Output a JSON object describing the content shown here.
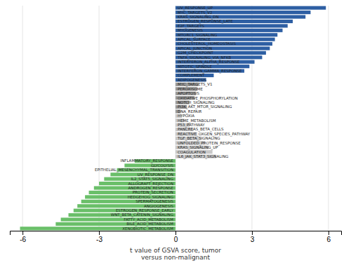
{
  "chart_data": {
    "type": "bar",
    "orientation": "horizontal",
    "categories": [
      "UV_RESPONSE_UP",
      "MYC_TARGETS_V2",
      "KRAS_SIGNALING_DN",
      "ESTROGEN_RESPONSE_LATE",
      "E2F_TARGETS",
      "MYOGENESIS",
      "MTORC1_SIGNALING",
      "APICAL_SURFACE",
      "CHOLESTEROL_HOMEOSTASIS",
      "APICAL_JUNCTION",
      "G2M_CHECKPOINT",
      "TNFA_SIGNALING_VIA_NFKB",
      "INTERFERON_ALPHA_RESPONSE",
      "MITOTIC_SPINDLE",
      "INTERFERON_GAMMA_RESPONSE",
      "COMPLEMENT",
      "ADIPOGENESIS",
      "MYC_TARGETS_V1",
      "PEROXISOME",
      "APOPTOSIS",
      "OXIDATIVE_PHOSPHORYLATION",
      "NOTCH_SIGNALING",
      "PI3K_AKT_MTOR_SIGNALING",
      "DNA_REPAIR",
      "HYPOXIA",
      "HEME_METABOLISM",
      "P53_PATHWAY",
      "PANCREAS_BETA_CELLS",
      "REACTIVE_OXGEN_SPECIES_PATHWAY",
      "TGF_BETA_SIGNALING",
      "UNFOLDED_PROTEIN_RESPONSE",
      "KRAS_SIGNALING_UP",
      "COAGULATION",
      "IL6_JAK_STAT3_SIGNALING",
      "INFLAMMATORY_RESPONSE",
      "GLYCOLYSIS",
      "EPITHELIAL_MESENCHYMAL_TRANSITION",
      "UV_RESPONSE_DN",
      "IL2_STAT5_SIGNALING",
      "ALLOGRAFT_REJECTION",
      "ANDROGEN_RESPONSE",
      "PROTEIN_SECRETION",
      "HEDGEHOG_SIGNALING",
      "SPERMATOGENESIS",
      "ANGIOGENESIS",
      "ESTROGEN_RESPONSE_EARLY",
      "WNT_BETA_CATENIN_SIGNALING",
      "FATTY_ACID_METABOLISM",
      "BILE_ACID_METABOLISM",
      "XENOBIOTIC_METABOLISM"
    ],
    "values": [
      5.9,
      5.3,
      5.1,
      4.6,
      4.4,
      4.2,
      4.0,
      3.9,
      3.8,
      3.7,
      3.55,
      3.4,
      3.1,
      2.9,
      2.7,
      1.5,
      1.2,
      0.9,
      0.85,
      0.8,
      0.75,
      0.55,
      0.45,
      0.2,
      0.25,
      0.35,
      0.55,
      0.7,
      0.85,
      1.0,
      1.15,
      1.3,
      1.45,
      1.6,
      -1.6,
      -2.0,
      -2.3,
      -2.55,
      -2.8,
      -3.0,
      -3.2,
      -3.4,
      -3.55,
      -3.7,
      -3.85,
      -4.0,
      -4.2,
      -4.5,
      -4.7,
      -6.1
    ],
    "colors": [
      "#2E5FA3",
      "#2E5FA3",
      "#2E5FA3",
      "#2E5FA3",
      "#2E5FA3",
      "#2E5FA3",
      "#2E5FA3",
      "#2E5FA3",
      "#2E5FA3",
      "#2E5FA3",
      "#2E5FA3",
      "#2E5FA3",
      "#2E5FA3",
      "#2E5FA3",
      "#2E5FA3",
      "#2E5FA3",
      "#2E5FA3",
      "#999999",
      "#999999",
      "#999999",
      "#999999",
      "#999999",
      "#999999",
      "#999999",
      "#C8C8C8",
      "#C8C8C8",
      "#C8C8C8",
      "#C8C8C8",
      "#C8C8C8",
      "#C8C8C8",
      "#C8C8C8",
      "#C8C8C8",
      "#C8C8C8",
      "#C8C8C8",
      "#6ABF69",
      "#6ABF69",
      "#6ABF69",
      "#6ABF69",
      "#6ABF69",
      "#6ABF69",
      "#6ABF69",
      "#6ABF69",
      "#6ABF69",
      "#6ABF69",
      "#6ABF69",
      "#6ABF69",
      "#6ABF69",
      "#6ABF69",
      "#6ABF69",
      "#6ABF69"
    ],
    "xlabel": "t value of GSVA score, tumor\nversus non-malignant",
    "xlim": [
      -6.5,
      6.5
    ],
    "xticks": [
      -6,
      -3,
      0,
      3,
      6
    ],
    "grid": true
  }
}
